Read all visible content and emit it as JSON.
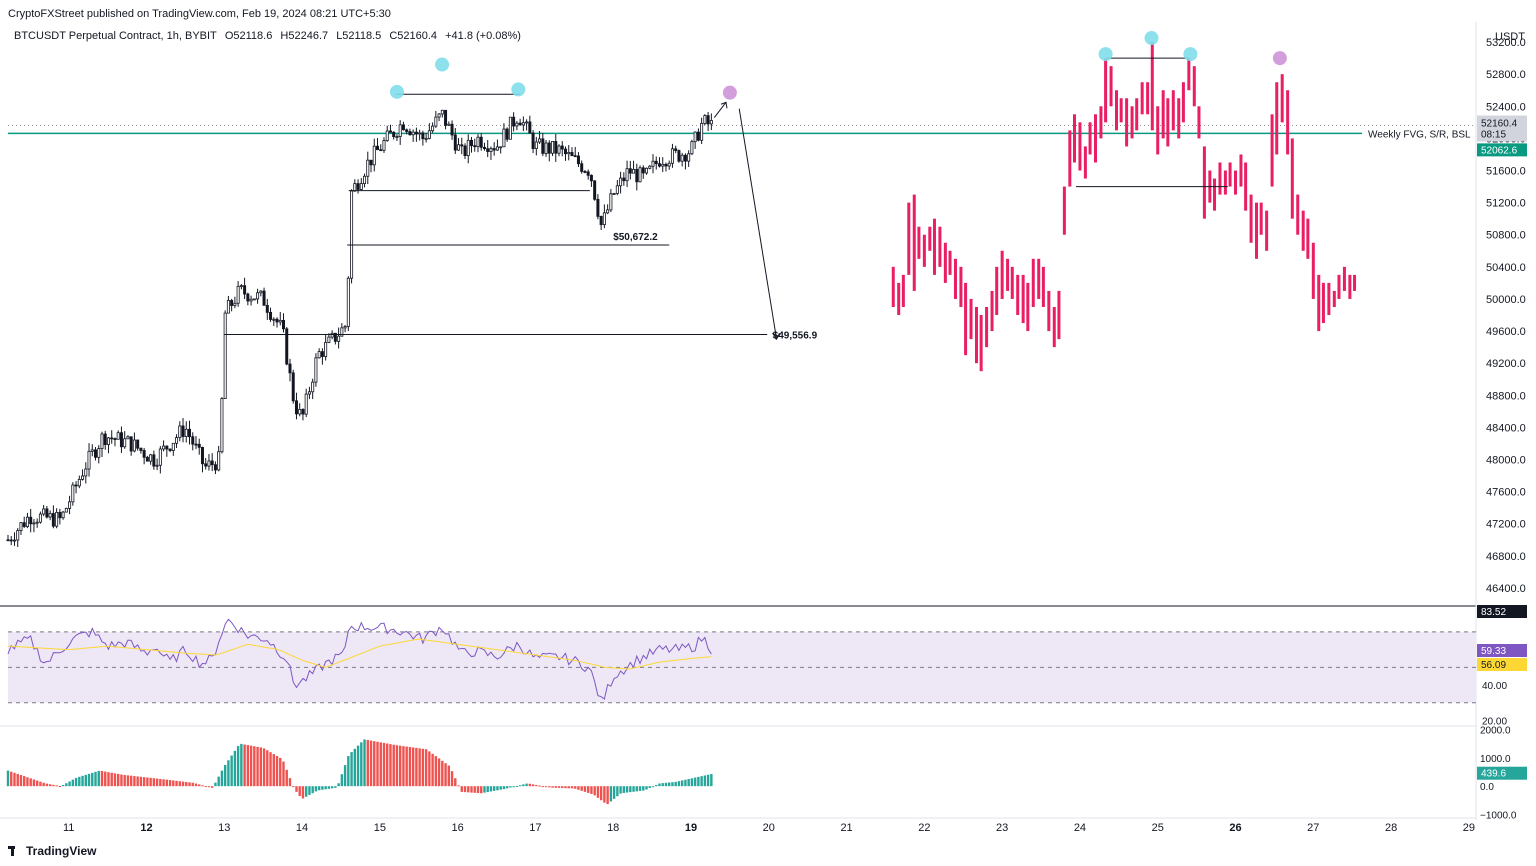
{
  "header": {
    "publisher_line": "CryptoFXStreet published on TradingView.com, Feb 19, 2024 08:21 UTC+5:30",
    "symbol": "BTCUSDT Perpetual Contract, 1h, BYBIT",
    "open": "O52118.6",
    "high": "H52246.7",
    "low": "L52118.5",
    "close": "C52160.4",
    "change": "+41.8 (+0.08%)"
  },
  "footer": {
    "brand": "TradingView"
  },
  "colors": {
    "candle": "#131722",
    "projection": "#e91e63",
    "support_line": "#089981",
    "rsi_line": "#7e57c2",
    "rsi_ma": "#fdd835",
    "rsi_band": "#ede7f6",
    "macd_up": "#26a69a",
    "macd_down": "#ef5350",
    "marker_cyan": "#80deea",
    "marker_purple": "#ce93d8"
  },
  "chart_data": {
    "type": "candlestick",
    "price_axis": {
      "unit": "USDT",
      "ticks": [
        53200,
        52800,
        52400,
        52000,
        51600,
        51200,
        50800,
        50400,
        50000,
        49600,
        49200,
        48800,
        48400,
        48000,
        47600,
        47200,
        46800,
        46400
      ],
      "tick_labels": [
        "53200.0",
        "52800.0",
        "52400.0",
        "52000.0",
        "51600.0",
        "51200.0",
        "50800.0",
        "50400.0",
        "50000.0",
        "49600.0",
        "49200.0",
        "48800.0",
        "48400.0",
        "48000.0",
        "47600.0",
        "47200.0",
        "46800.0",
        "46400.0"
      ],
      "range": [
        46200,
        53450
      ],
      "price_tag": "52160.4",
      "countdown": "08:15",
      "line_tag": "52062.6"
    },
    "x_axis": {
      "labels": [
        "11",
        "12",
        "13",
        "14",
        "15",
        "16",
        "17",
        "18",
        "19",
        "20",
        "21",
        "22",
        "23",
        "24",
        "25",
        "26",
        "27",
        "28",
        "29"
      ],
      "bold_labels": [
        "12",
        "19",
        "26"
      ],
      "label_day": [
        11,
        12,
        13,
        14,
        15,
        16,
        17,
        18,
        19,
        20,
        21,
        22,
        23,
        24,
        25,
        26,
        27,
        28,
        29
      ],
      "range_days": [
        10.22,
        29.04
      ]
    },
    "horizontal_line": {
      "price": 52062.6,
      "label": "Weekly FVG, S/R, BSL"
    },
    "price_levels": [
      {
        "price": 50672.2,
        "label": "$50,672.2",
        "from_day": 14.58,
        "to_day": 18.72
      },
      {
        "price": 49556.9,
        "label": "$49,556.9",
        "from_day": 13.0,
        "to_day": 19.98
      }
    ],
    "range_lines": [
      {
        "price": 52550,
        "from_day": 15.2,
        "to_day": 16.8
      },
      {
        "price": 51350,
        "from_day": 14.6,
        "to_day": 17.7
      },
      {
        "price": 53000,
        "from_day": 24.35,
        "to_day": 25.4
      },
      {
        "price": 51400,
        "from_day": 23.95,
        "to_day": 25.9
      }
    ],
    "markers": [
      {
        "day": 15.22,
        "price": 52580,
        "color": "cyan"
      },
      {
        "day": 15.8,
        "price": 52920,
        "color": "cyan"
      },
      {
        "day": 16.78,
        "price": 52610,
        "color": "cyan"
      },
      {
        "day": 19.5,
        "price": 52570,
        "color": "purple"
      },
      {
        "day": 24.33,
        "price": 53050,
        "color": "cyan"
      },
      {
        "day": 24.92,
        "price": 53250,
        "color": "cyan"
      },
      {
        "day": 25.42,
        "price": 53050,
        "color": "cyan"
      },
      {
        "day": 26.57,
        "price": 53000,
        "color": "purple"
      }
    ],
    "projection_arrow": [
      {
        "day": 19.3,
        "price": 52260
      },
      {
        "day": 19.45,
        "price": 52450
      },
      {
        "day": 19.62,
        "price": 52370
      },
      {
        "day": 20.1,
        "price": 49500
      }
    ],
    "anchors": [
      {
        "day": 10.22,
        "price": 47000
      },
      {
        "day": 10.5,
        "price": 47300
      },
      {
        "day": 10.9,
        "price": 47250
      },
      {
        "day": 11.2,
        "price": 47900
      },
      {
        "day": 11.45,
        "price": 48300
      },
      {
        "day": 11.8,
        "price": 48200
      },
      {
        "day": 12.1,
        "price": 48000
      },
      {
        "day": 12.5,
        "price": 48400
      },
      {
        "day": 12.75,
        "price": 47900
      },
      {
        "day": 12.95,
        "price": 48000
      },
      {
        "day": 13.0,
        "price": 49800
      },
      {
        "day": 13.2,
        "price": 50100
      },
      {
        "day": 13.5,
        "price": 50000
      },
      {
        "day": 13.75,
        "price": 49600
      },
      {
        "day": 13.9,
        "price": 48700
      },
      {
        "day": 14.0,
        "price": 48500
      },
      {
        "day": 14.2,
        "price": 49300
      },
      {
        "day": 14.5,
        "price": 49600
      },
      {
        "day": 14.58,
        "price": 49700
      },
      {
        "day": 14.62,
        "price": 51300
      },
      {
        "day": 14.85,
        "price": 51700
      },
      {
        "day": 15.1,
        "price": 52000
      },
      {
        "day": 15.3,
        "price": 52200
      },
      {
        "day": 15.55,
        "price": 52000
      },
      {
        "day": 15.8,
        "price": 52300
      },
      {
        "day": 16.05,
        "price": 51800
      },
      {
        "day": 16.25,
        "price": 52000
      },
      {
        "day": 16.5,
        "price": 51900
      },
      {
        "day": 16.78,
        "price": 52300
      },
      {
        "day": 17.0,
        "price": 51900
      },
      {
        "day": 17.3,
        "price": 51850
      },
      {
        "day": 17.7,
        "price": 51600
      },
      {
        "day": 17.85,
        "price": 50900
      },
      {
        "day": 18.0,
        "price": 51300
      },
      {
        "day": 18.2,
        "price": 51600
      },
      {
        "day": 18.4,
        "price": 51500
      },
      {
        "day": 18.6,
        "price": 51750
      },
      {
        "day": 18.85,
        "price": 51800
      },
      {
        "day": 19.0,
        "price": 51850
      },
      {
        "day": 19.15,
        "price": 52200
      },
      {
        "day": 19.28,
        "price": 52160
      }
    ],
    "projection_bars": [
      [
        21.6,
        49900,
        50400
      ],
      [
        21.67,
        49800,
        50200
      ],
      [
        21.73,
        49900,
        50300
      ],
      [
        21.8,
        50300,
        51200
      ],
      [
        21.87,
        50100,
        51300
      ],
      [
        21.93,
        50500,
        50900
      ],
      [
        22.0,
        50400,
        50800
      ],
      [
        22.07,
        50600,
        50900
      ],
      [
        22.13,
        50300,
        51000
      ],
      [
        22.2,
        50400,
        50900
      ],
      [
        22.27,
        50200,
        50700
      ],
      [
        22.33,
        50300,
        50600
      ],
      [
        22.4,
        50000,
        50500
      ],
      [
        22.47,
        49900,
        50400
      ],
      [
        22.53,
        49300,
        50200
      ],
      [
        22.6,
        49500,
        50000
      ],
      [
        22.67,
        49200,
        49900
      ],
      [
        22.73,
        49100,
        49800
      ],
      [
        22.8,
        49400,
        49900
      ],
      [
        22.87,
        49600,
        50100
      ],
      [
        22.93,
        49800,
        50400
      ],
      [
        23.0,
        50000,
        50600
      ],
      [
        23.07,
        50100,
        50500
      ],
      [
        23.13,
        50000,
        50400
      ],
      [
        23.2,
        49800,
        50300
      ],
      [
        23.27,
        49700,
        50300
      ],
      [
        23.33,
        49600,
        50200
      ],
      [
        23.4,
        49900,
        50500
      ],
      [
        23.47,
        50000,
        50500
      ],
      [
        23.53,
        49900,
        50400
      ],
      [
        23.6,
        49600,
        50100
      ],
      [
        23.67,
        49400,
        49900
      ],
      [
        23.73,
        49500,
        50100
      ],
      [
        23.8,
        50800,
        51400
      ],
      [
        23.87,
        51400,
        52100
      ],
      [
        23.93,
        51700,
        52300
      ],
      [
        24.0,
        51600,
        52200
      ],
      [
        24.07,
        51500,
        51900
      ],
      [
        24.13,
        51800,
        52200
      ],
      [
        24.2,
        51700,
        52300
      ],
      [
        24.27,
        52000,
        52400
      ],
      [
        24.33,
        52200,
        53000
      ],
      [
        24.4,
        52400,
        52900
      ],
      [
        24.47,
        52100,
        52600
      ],
      [
        24.53,
        52200,
        52500
      ],
      [
        24.6,
        51900,
        52500
      ],
      [
        24.67,
        52000,
        52400
      ],
      [
        24.73,
        52100,
        52500
      ],
      [
        24.8,
        52300,
        52700
      ],
      [
        24.87,
        52300,
        52700
      ],
      [
        24.93,
        52100,
        53200
      ],
      [
        25.0,
        51800,
        52400
      ],
      [
        25.07,
        52000,
        52600
      ],
      [
        25.13,
        51900,
        52500
      ],
      [
        25.2,
        52100,
        52600
      ],
      [
        25.27,
        52000,
        52500
      ],
      [
        25.33,
        52200,
        52700
      ],
      [
        25.4,
        52600,
        53000
      ],
      [
        25.47,
        52400,
        52900
      ],
      [
        25.53,
        52000,
        52400
      ],
      [
        25.6,
        51000,
        51900
      ],
      [
        25.67,
        51200,
        51600
      ],
      [
        25.73,
        51100,
        51500
      ],
      [
        25.8,
        51300,
        51700
      ],
      [
        25.87,
        51300,
        51600
      ],
      [
        25.93,
        51400,
        51700
      ],
      [
        26.0,
        51300,
        51600
      ],
      [
        26.07,
        51400,
        51800
      ],
      [
        26.13,
        51100,
        51700
      ],
      [
        26.2,
        50700,
        51300
      ],
      [
        26.27,
        50500,
        51200
      ],
      [
        26.33,
        50800,
        51200
      ],
      [
        26.4,
        50600,
        51100
      ],
      [
        26.47,
        51400,
        52300
      ],
      [
        26.53,
        51800,
        52700
      ],
      [
        26.6,
        52200,
        52800
      ],
      [
        26.67,
        51800,
        52600
      ],
      [
        26.73,
        51000,
        52000
      ],
      [
        26.8,
        50800,
        51300
      ],
      [
        26.87,
        50600,
        51100
      ],
      [
        26.93,
        50500,
        51000
      ],
      [
        27.0,
        50000,
        50700
      ],
      [
        27.07,
        49600,
        50300
      ],
      [
        27.13,
        49700,
        50200
      ],
      [
        27.2,
        49800,
        50200
      ],
      [
        27.27,
        49900,
        50100
      ],
      [
        27.33,
        50000,
        50300
      ],
      [
        27.4,
        50100,
        50400
      ],
      [
        27.47,
        50000,
        50300
      ],
      [
        27.53,
        50100,
        50300
      ]
    ],
    "rsi": {
      "label_current": "59.33",
      "label_ma": "56.09",
      "label_top": "83.52",
      "ticks": [
        20,
        40
      ],
      "tick_labels": [
        "20.00",
        "40.00"
      ],
      "levels": [
        30,
        50,
        70
      ],
      "range": [
        18,
        83.52
      ],
      "anchors": [
        [
          10.22,
          60
        ],
        [
          10.5,
          66
        ],
        [
          10.7,
          52
        ],
        [
          10.95,
          62
        ],
        [
          11.1,
          67
        ],
        [
          11.3,
          70
        ],
        [
          11.5,
          62
        ],
        [
          11.75,
          64
        ],
        [
          12.0,
          58
        ],
        [
          12.1,
          62
        ],
        [
          12.3,
          53
        ],
        [
          12.5,
          60
        ],
        [
          12.7,
          52
        ],
        [
          12.85,
          55
        ],
        [
          12.95,
          68
        ],
        [
          13.05,
          77
        ],
        [
          13.3,
          68
        ],
        [
          13.55,
          66
        ],
        [
          13.8,
          55
        ],
        [
          13.9,
          40
        ],
        [
          14.0,
          42
        ],
        [
          14.3,
          52
        ],
        [
          14.55,
          58
        ],
        [
          14.6,
          73
        ],
        [
          14.8,
          73
        ],
        [
          15.1,
          72
        ],
        [
          15.3,
          70
        ],
        [
          15.55,
          66
        ],
        [
          15.8,
          73
        ],
        [
          16.05,
          58
        ],
        [
          16.25,
          59
        ],
        [
          16.5,
          56
        ],
        [
          16.78,
          63
        ],
        [
          17.0,
          55
        ],
        [
          17.3,
          56
        ],
        [
          17.55,
          53
        ],
        [
          17.7,
          49
        ],
        [
          17.85,
          30
        ],
        [
          18.0,
          45
        ],
        [
          18.3,
          54
        ],
        [
          18.6,
          60
        ],
        [
          18.85,
          60
        ],
        [
          19.05,
          62
        ],
        [
          19.15,
          67
        ],
        [
          19.28,
          59.33
        ]
      ],
      "ma_anchors": [
        [
          10.22,
          62
        ],
        [
          10.6,
          61
        ],
        [
          11.0,
          60
        ],
        [
          11.5,
          62
        ],
        [
          12.0,
          60
        ],
        [
          12.5,
          58
        ],
        [
          12.9,
          57
        ],
        [
          13.3,
          63
        ],
        [
          13.7,
          60
        ],
        [
          14.0,
          54
        ],
        [
          14.3,
          50
        ],
        [
          14.6,
          55
        ],
        [
          15.0,
          62
        ],
        [
          15.5,
          66
        ],
        [
          16.0,
          63
        ],
        [
          16.5,
          60
        ],
        [
          17.0,
          57
        ],
        [
          17.5,
          54
        ],
        [
          17.9,
          50
        ],
        [
          18.2,
          49
        ],
        [
          18.6,
          53
        ],
        [
          19.0,
          55
        ],
        [
          19.28,
          56.09
        ]
      ]
    },
    "histogram": {
      "ticks": [
        2000,
        1000,
        0,
        -1000
      ],
      "tick_labels": [
        "2000.0",
        "1000.0",
        "0.0",
        "−1000.0"
      ],
      "range": [
        -1050,
        2050
      ],
      "current_label": "439.6",
      "anchors": [
        [
          10.22,
          550
        ],
        [
          10.7,
          100
        ],
        [
          10.9,
          0
        ],
        [
          11.1,
          300
        ],
        [
          11.4,
          550
        ],
        [
          11.7,
          400
        ],
        [
          12.2,
          250
        ],
        [
          12.6,
          120
        ],
        [
          12.85,
          -60
        ],
        [
          13.0,
          700
        ],
        [
          13.2,
          1500
        ],
        [
          13.5,
          1350
        ],
        [
          13.75,
          950
        ],
        [
          13.9,
          -100
        ],
        [
          14.0,
          -450
        ],
        [
          14.2,
          -150
        ],
        [
          14.45,
          -50
        ],
        [
          14.6,
          1100
        ],
        [
          14.8,
          1650
        ],
        [
          15.2,
          1450
        ],
        [
          15.6,
          1300
        ],
        [
          15.9,
          700
        ],
        [
          16.05,
          -200
        ],
        [
          16.3,
          -250
        ],
        [
          16.6,
          -100
        ],
        [
          16.9,
          100
        ],
        [
          17.2,
          -50
        ],
        [
          17.5,
          -80
        ],
        [
          17.75,
          -300
        ],
        [
          17.92,
          -650
        ],
        [
          18.1,
          -250
        ],
        [
          18.4,
          -150
        ],
        [
          18.6,
          100
        ],
        [
          18.8,
          150
        ],
        [
          19.28,
          439.6
        ]
      ]
    }
  }
}
